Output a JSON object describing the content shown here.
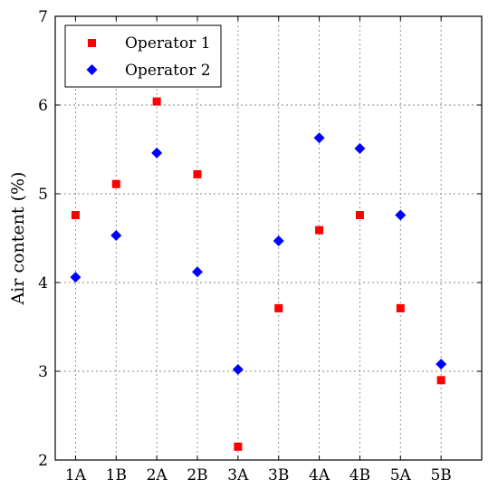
{
  "chart_data": {
    "type": "scatter",
    "title": "",
    "xlabel": "",
    "ylabel": "Air content (%)",
    "categories": [
      "1A",
      "1B",
      "2A",
      "2B",
      "3A",
      "3B",
      "4A",
      "4B",
      "5A",
      "5B"
    ],
    "ylim": [
      2,
      7
    ],
    "yticks": [
      2,
      3,
      4,
      5,
      6,
      7
    ],
    "grid": true,
    "legend_position": "top-left",
    "series": [
      {
        "name": "Operator 1",
        "marker": "square",
        "color": "#ff0000",
        "values": [
          4.76,
          5.11,
          6.04,
          5.22,
          2.15,
          3.71,
          4.59,
          4.76,
          3.71,
          2.9
        ]
      },
      {
        "name": "Operator 2",
        "marker": "diamond",
        "color": "#0000ff",
        "values": [
          4.06,
          4.53,
          5.46,
          4.12,
          3.02,
          4.47,
          5.63,
          5.51,
          4.76,
          3.08
        ]
      }
    ]
  }
}
